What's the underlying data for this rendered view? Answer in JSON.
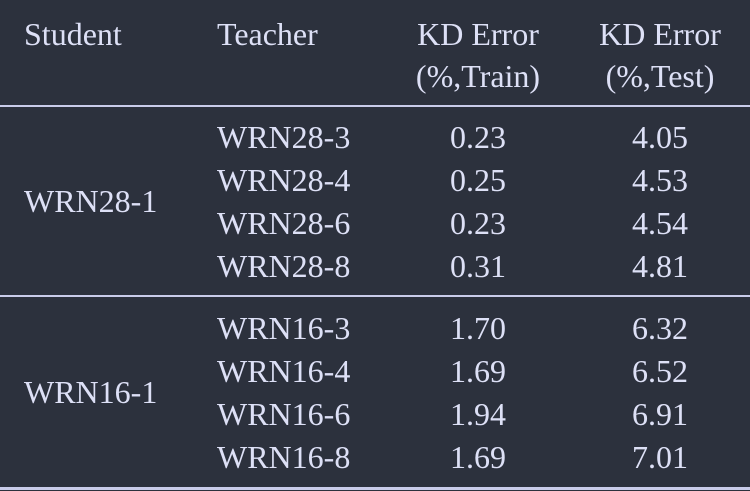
{
  "table": {
    "headers": {
      "student": "Student",
      "teacher": "Teacher",
      "kd_train_line1": "KD Error",
      "kd_train_line2": "(%,Train)",
      "kd_test_line1": "KD Error",
      "kd_test_line2": "(%,Test)"
    },
    "groups": [
      {
        "student": "WRN28-1",
        "rows": [
          {
            "teacher": "WRN28-3",
            "train": "0.23",
            "test": "4.05"
          },
          {
            "teacher": "WRN28-4",
            "train": "0.25",
            "test": "4.53"
          },
          {
            "teacher": "WRN28-6",
            "train": "0.23",
            "test": "4.54"
          },
          {
            "teacher": "WRN28-8",
            "train": "0.31",
            "test": "4.81"
          }
        ]
      },
      {
        "student": "WRN16-1",
        "rows": [
          {
            "teacher": "WRN16-3",
            "train": "1.70",
            "test": "6.32"
          },
          {
            "teacher": "WRN16-4",
            "train": "1.69",
            "test": "6.52"
          },
          {
            "teacher": "WRN16-6",
            "train": "1.94",
            "test": "6.91"
          },
          {
            "teacher": "WRN16-8",
            "train": "1.69",
            "test": "7.01"
          }
        ]
      }
    ]
  }
}
